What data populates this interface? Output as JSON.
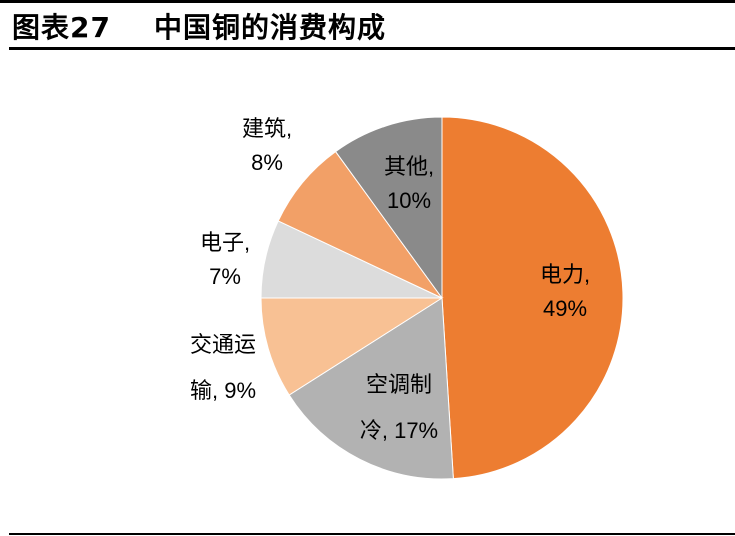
{
  "header": {
    "figure_label": "图表27",
    "title": "中国铜的消费构成"
  },
  "chart_data": {
    "type": "pie",
    "title": "中国铜的消费构成",
    "start_angle": "12 o'clock, clockwise",
    "slices": [
      {
        "label": "电力",
        "value": 49,
        "color": "#ED7D31",
        "text_line1": "电力,",
        "text_line2": "49%"
      },
      {
        "label": "空调制冷",
        "value": 17,
        "color": "#B2B2B2",
        "text_line1": "空调制",
        "text_line2": "冷, 17%"
      },
      {
        "label": "交通运输",
        "value": 9,
        "color": "#F8C194",
        "text_line1": "交通运",
        "text_line2": "输, 9%"
      },
      {
        "label": "电子",
        "value": 7,
        "color": "#DCDCDC",
        "text_line1": "电子,",
        "text_line2": "7%"
      },
      {
        "label": "建筑",
        "value": 8,
        "color": "#F2A067",
        "text_line1": "建筑,",
        "text_line2": "8%"
      },
      {
        "label": "其他",
        "value": 10,
        "color": "#8A8A8A",
        "text_line1": "其他,",
        "text_line2": "10%"
      }
    ],
    "legend": "none (data labels)",
    "units": "%"
  }
}
